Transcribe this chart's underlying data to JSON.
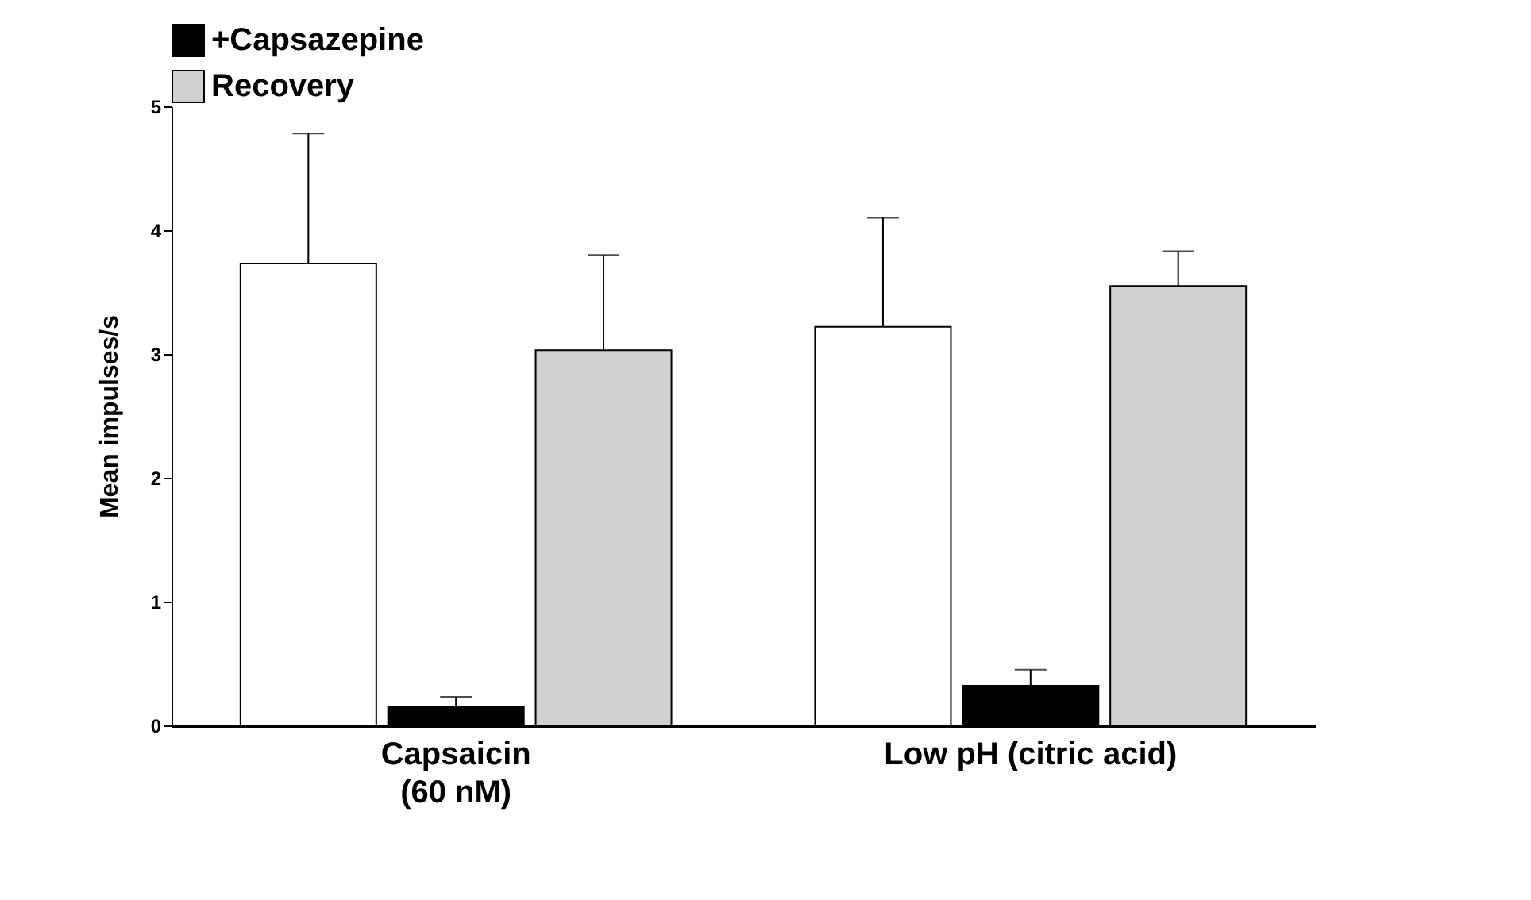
{
  "chart_data": {
    "type": "bar",
    "ylabel": "Mean impulses/s",
    "categories": [
      "Capsaicin\n(60 nM)",
      "Low pH (citric acid)"
    ],
    "series": [
      {
        "color": "#ffffff",
        "values": [
          3.73,
          3.22
        ],
        "errors": [
          [
            3.73,
            4.78
          ],
          [
            3.22,
            4.1
          ]
        ]
      },
      {
        "name": "+Capsazepine",
        "color": "#000000",
        "values": [
          0.15,
          0.32
        ],
        "errors": [
          [
            0.15,
            0.23
          ],
          [
            0.32,
            0.45
          ]
        ]
      },
      {
        "name": "Recovery",
        "color": "#d0d0d0",
        "values": [
          3.03,
          3.55
        ],
        "errors": [
          [
            3.03,
            3.8
          ],
          [
            3.55,
            3.83
          ]
        ]
      }
    ],
    "ylim": [
      0,
      5
    ],
    "yticks": [
      0,
      1,
      2,
      3,
      4,
      5
    ],
    "grid": false,
    "legend": "top"
  }
}
